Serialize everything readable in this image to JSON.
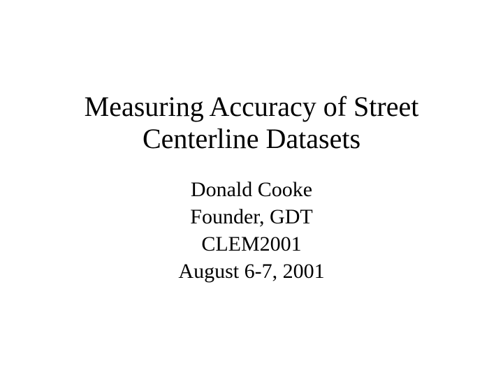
{
  "slide": {
    "title": "Measuring Accuracy of Street Centerline Datasets",
    "author": "Donald Cooke",
    "role": "Founder, GDT",
    "event": "CLEM2001",
    "date": "August 6-7, 2001",
    "background_color": "#ffffff",
    "text_color": "#000000",
    "title_fontsize": 40,
    "body_fontsize": 30,
    "font_family": "Times New Roman"
  }
}
